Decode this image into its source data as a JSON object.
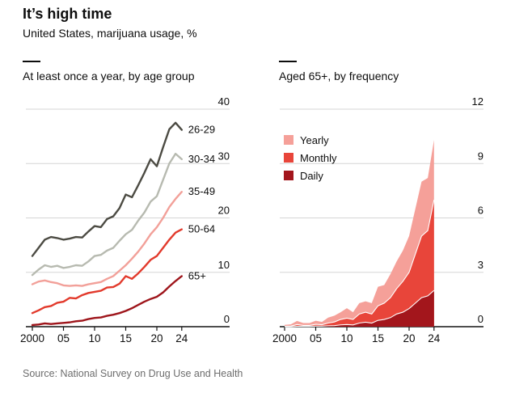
{
  "header": {
    "title": "It’s high time",
    "subtitle": "United States, marijuana usage, %"
  },
  "source": "Source: National Survey on Drug Use and Health",
  "palette": {
    "grid": "#d6d6d6",
    "axis": "#141414",
    "text": "#0d0d0d",
    "source_text": "#6d6d6d"
  },
  "chart_data": [
    {
      "type": "line",
      "title": "At least once a year, by age group",
      "x": [
        2000,
        2001,
        2002,
        2003,
        2004,
        2005,
        2006,
        2007,
        2008,
        2009,
        2010,
        2011,
        2012,
        2013,
        2014,
        2015,
        2016,
        2017,
        2018,
        2019,
        2020,
        2021,
        2022,
        2023,
        2024
      ],
      "x_ticks": [
        2000,
        2005,
        2010,
        2015,
        2020,
        2024
      ],
      "x_tick_labels": [
        "2000",
        "05",
        "10",
        "15",
        "20",
        "24"
      ],
      "ylim": [
        0,
        40
      ],
      "y_ticks": [
        0,
        10,
        20,
        30,
        40
      ],
      "grid": true,
      "legend_position": "line-end-labels",
      "series": [
        {
          "name": "26-29",
          "color": "#4c4b43",
          "values": [
            13,
            14.5,
            16,
            16.5,
            16.3,
            16,
            16.2,
            16.5,
            16.4,
            17.5,
            18.5,
            18.3,
            19.8,
            20.3,
            21.8,
            24.3,
            23.8,
            26,
            28.3,
            30.8,
            29.5,
            33,
            36.3,
            37.5,
            36.2
          ]
        },
        {
          "name": "30-34",
          "color": "#b7bab0",
          "values": [
            9.5,
            10.5,
            11.3,
            11,
            11.2,
            10.8,
            11,
            11.3,
            11.2,
            12,
            13,
            13.2,
            14,
            14.5,
            15.8,
            17,
            17.8,
            19.5,
            21,
            23,
            24,
            27,
            30,
            31.8,
            30.8
          ]
        },
        {
          "name": "35-49",
          "color": "#f2a099",
          "values": [
            7.8,
            8.3,
            8.5,
            8.2,
            8,
            7.6,
            7.5,
            7.6,
            7.5,
            7.8,
            8,
            8.2,
            8.8,
            9.3,
            10.3,
            11.3,
            12.5,
            13.8,
            15.3,
            17,
            18.3,
            20,
            22,
            23.5,
            24.8
          ]
        },
        {
          "name": "50-64",
          "color": "#e23a2c",
          "values": [
            2.5,
            3,
            3.6,
            3.8,
            4.4,
            4.6,
            5.3,
            5.2,
            5.8,
            6.2,
            6.4,
            6.6,
            7.2,
            7.3,
            7.9,
            9.3,
            8.8,
            9.8,
            11,
            12.3,
            13,
            14.5,
            16,
            17.3,
            17.9
          ]
        },
        {
          "name": "65+",
          "color": "#9e151b",
          "values": [
            0.3,
            0.4,
            0.6,
            0.5,
            0.6,
            0.7,
            0.8,
            1,
            1.1,
            1.4,
            1.6,
            1.7,
            2,
            2.2,
            2.5,
            2.9,
            3.4,
            4,
            4.6,
            5.1,
            5.5,
            6.3,
            7.4,
            8.4,
            9.3
          ]
        }
      ]
    },
    {
      "type": "area",
      "title": "Aged 65+, by frequency",
      "x": [
        2000,
        2001,
        2002,
        2003,
        2004,
        2005,
        2006,
        2007,
        2008,
        2009,
        2010,
        2011,
        2012,
        2013,
        2014,
        2015,
        2016,
        2017,
        2018,
        2019,
        2020,
        2021,
        2022,
        2023,
        2024
      ],
      "x_ticks": [
        2000,
        2005,
        2010,
        2015,
        2020,
        2024
      ],
      "x_tick_labels": [
        "2000",
        "05",
        "10",
        "15",
        "20",
        "24"
      ],
      "ylim": [
        0,
        12
      ],
      "y_ticks": [
        0,
        3,
        6,
        9,
        12
      ],
      "grid": true,
      "stacked": true,
      "legend_position": "top-left",
      "series": [
        {
          "name": "Yearly",
          "color": "#f5a099",
          "values": [
            0.08,
            0.1,
            0.2,
            0.13,
            0.13,
            0.2,
            0.15,
            0.3,
            0.35,
            0.4,
            0.55,
            0.4,
            0.6,
            0.6,
            0.6,
            1.05,
            1,
            1.3,
            1.5,
            1.7,
            2,
            2.5,
            3,
            2.9,
            3.3
          ]
        },
        {
          "name": "Monthly",
          "color": "#e8453a",
          "values": [
            0.02,
            0.03,
            0.1,
            0.05,
            0.05,
            0.1,
            0.08,
            0.15,
            0.2,
            0.3,
            0.35,
            0.3,
            0.5,
            0.55,
            0.5,
            0.8,
            0.9,
            1.1,
            1.4,
            1.7,
            2,
            2.7,
            3.4,
            3.6,
            5
          ]
        },
        {
          "name": "Daily",
          "color": "#a3161c",
          "values": [
            0,
            0,
            0.02,
            0.02,
            0.02,
            0.03,
            0.03,
            0.05,
            0.06,
            0.1,
            0.12,
            0.1,
            0.2,
            0.25,
            0.2,
            0.35,
            0.4,
            0.5,
            0.7,
            0.8,
            1,
            1.3,
            1.6,
            1.7,
            2
          ]
        }
      ]
    }
  ]
}
